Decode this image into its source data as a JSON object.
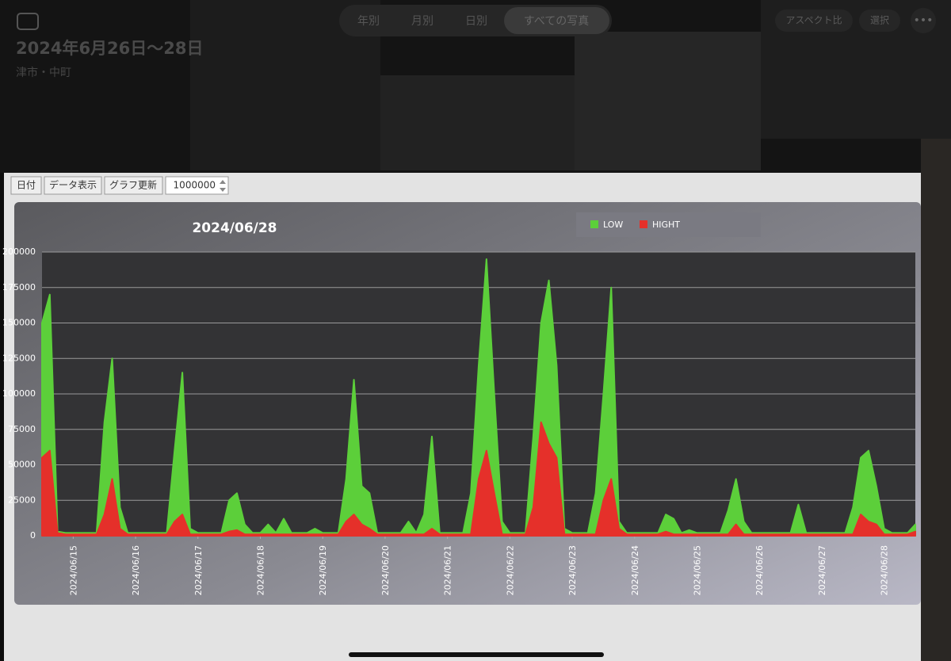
{
  "header": {
    "title": "2024年6月26日〜28日",
    "location": "津市・中町",
    "tabs": [
      "年別",
      "月別",
      "日別",
      "すべての写真"
    ],
    "buttons": [
      "アスペクト比",
      "選択"
    ]
  },
  "toolbar": {
    "buttons": [
      "日付",
      "データ表示",
      "グラフ更新"
    ],
    "input": 1000000
  },
  "chart_data": {
    "type": "area",
    "title": "2024/06/28",
    "categories": [
      null,
      null,
      null,
      null,
      "2024/06/15",
      null,
      null,
      null,
      null,
      null,
      null,
      null,
      "2024/06/16",
      null,
      null,
      null,
      null,
      null,
      null,
      null,
      "2024/06/17",
      null,
      null,
      null,
      null,
      null,
      null,
      null,
      "2024/06/18",
      null,
      null,
      null,
      null,
      null,
      null,
      null,
      "2024/06/19",
      null,
      null,
      null,
      null,
      null,
      null,
      null,
      "2024/06/20",
      null,
      null,
      null,
      null,
      null,
      null,
      null,
      "2024/06/21",
      null,
      null,
      null,
      null,
      null,
      null,
      null,
      "2024/06/22",
      null,
      null,
      null,
      null,
      null,
      null,
      null,
      "2024/06/23",
      null,
      null,
      null,
      null,
      null,
      null,
      null,
      "2024/06/24",
      null,
      null,
      null,
      null,
      null,
      null,
      null,
      "2024/06/25",
      null,
      null,
      null,
      null,
      null,
      null,
      null,
      "2024/06/26",
      null,
      null,
      null,
      null,
      null,
      null,
      null,
      "2024/06/27",
      null,
      null,
      null,
      null,
      null,
      null,
      null,
      "2024/06/28",
      null,
      null,
      null,
      null
    ],
    "series": [
      {
        "name": "LOW",
        "color": "#5ccf3a",
        "values": [
          150000,
          170000,
          3000,
          2000,
          2000,
          2000,
          2000,
          2000,
          80000,
          125000,
          20000,
          2000,
          2000,
          2000,
          2000,
          2000,
          2000,
          60000,
          115000,
          5000,
          2000,
          2000,
          2000,
          2000,
          25000,
          30000,
          8000,
          2000,
          2000,
          8000,
          2000,
          12000,
          2000,
          2000,
          2000,
          5000,
          2000,
          2000,
          2000,
          40000,
          110000,
          35000,
          30000,
          2000,
          2000,
          2000,
          2000,
          10000,
          2000,
          15000,
          70000,
          2000,
          2000,
          2000,
          2000,
          30000,
          120000,
          195000,
          100000,
          10000,
          2000,
          2000,
          2000,
          70000,
          150000,
          180000,
          120000,
          5000,
          2000,
          2000,
          2000,
          30000,
          100000,
          175000,
          10000,
          2000,
          2000,
          2000,
          2000,
          2000,
          15000,
          12000,
          2000,
          4000,
          2000,
          2000,
          2000,
          2000,
          18000,
          40000,
          10000,
          2000,
          2000,
          2000,
          2000,
          2000,
          2000,
          22000,
          2000,
          2000,
          2000,
          2000,
          2000,
          2000,
          20000,
          55000,
          60000,
          35000,
          5000,
          2000,
          2000,
          2000,
          8000
        ]
      },
      {
        "name": "HIGHT",
        "color": "#e5302a",
        "values": [
          55000,
          60000,
          2000,
          1000,
          1000,
          1000,
          1000,
          1000,
          15000,
          40000,
          5000,
          1000,
          1000,
          1000,
          1000,
          1000,
          1000,
          10000,
          15000,
          1000,
          1000,
          1000,
          1000,
          1000,
          3000,
          4000,
          1000,
          1000,
          1000,
          1000,
          1000,
          1000,
          1000,
          1000,
          1000,
          1000,
          1000,
          1000,
          1000,
          10000,
          15000,
          8000,
          5000,
          1000,
          1000,
          1000,
          1000,
          1000,
          1000,
          1000,
          5000,
          1000,
          1000,
          1000,
          1000,
          1000,
          40000,
          60000,
          30000,
          1000,
          1000,
          1000,
          1000,
          20000,
          80000,
          65000,
          55000,
          1000,
          1000,
          1000,
          1000,
          1000,
          25000,
          40000,
          5000,
          1000,
          1000,
          1000,
          1000,
          1000,
          3000,
          1000,
          1000,
          1000,
          1000,
          1000,
          1000,
          1000,
          1000,
          8000,
          1000,
          1000,
          1000,
          1000,
          1000,
          1000,
          1000,
          1000,
          1000,
          1000,
          1000,
          1000,
          1000,
          1000,
          1000,
          15000,
          10000,
          8000,
          1000,
          1000,
          1000,
          1000,
          3000
        ]
      }
    ],
    "ylim": [
      0,
      200000
    ],
    "yticks": [
      0,
      25000,
      50000,
      75000,
      100000,
      125000,
      150000,
      175000,
      200000
    ],
    "grid": true
  }
}
